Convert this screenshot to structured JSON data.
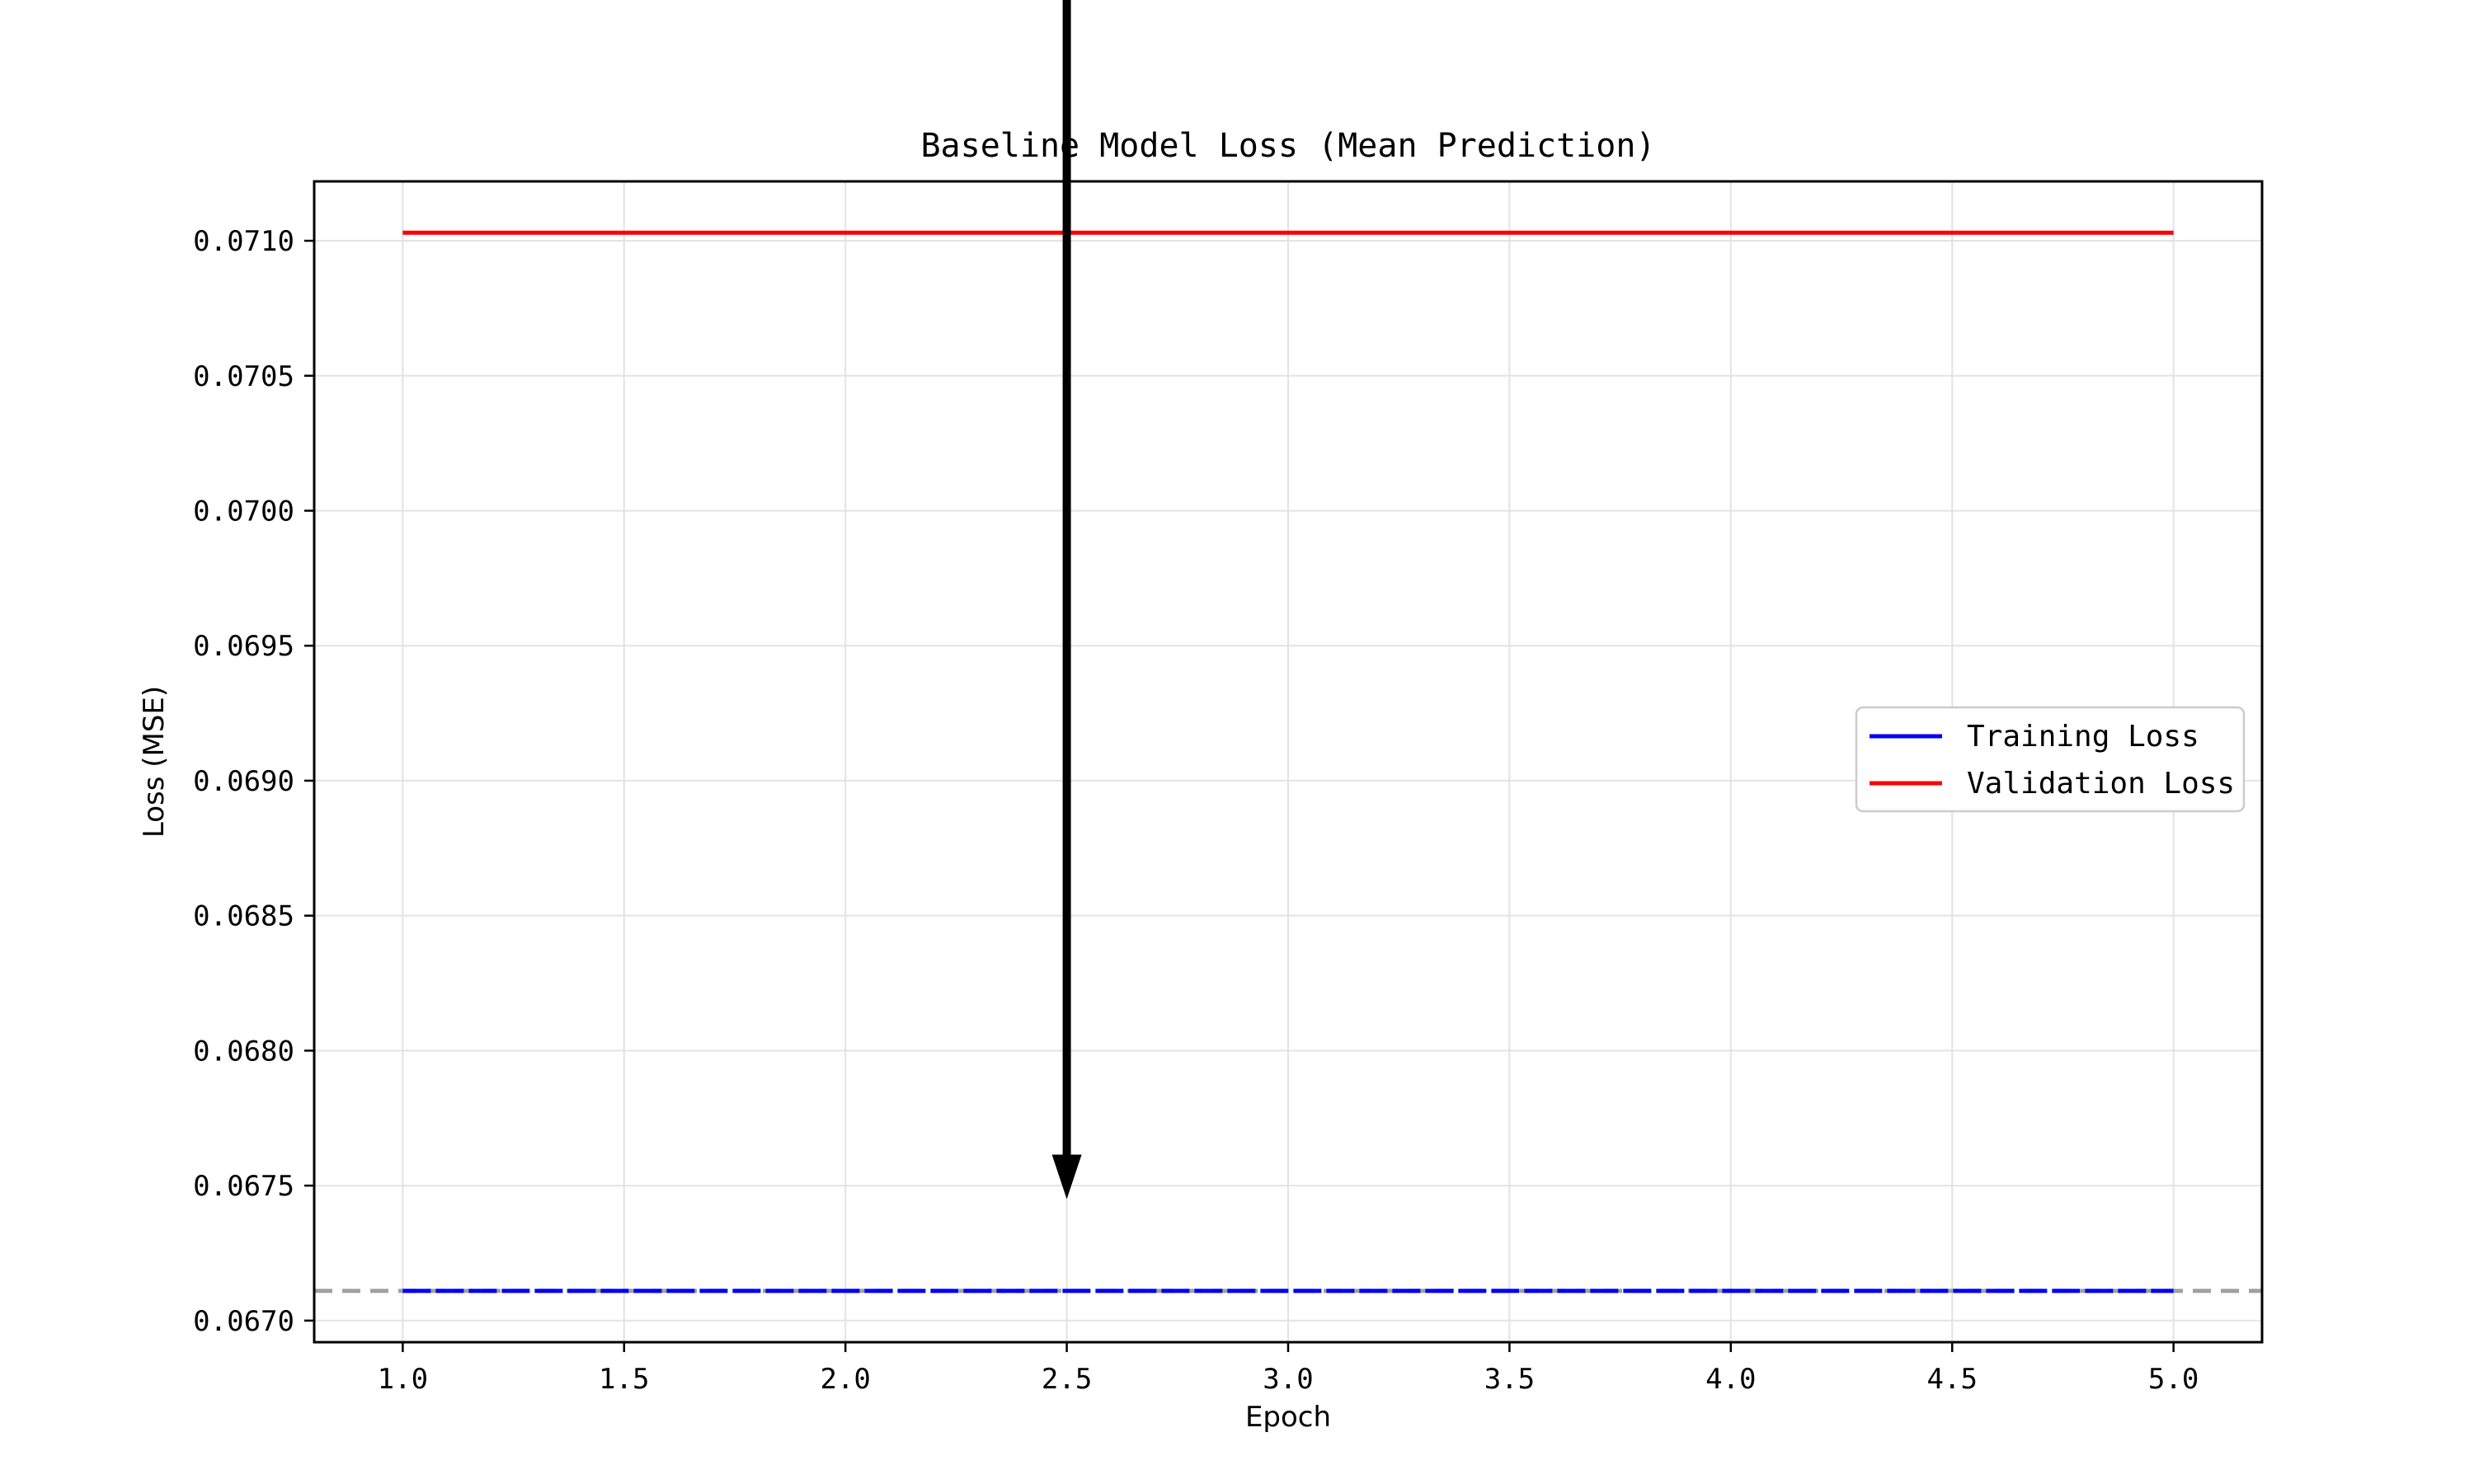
{
  "chart_data": {
    "type": "line",
    "title": "Baseline Model Loss (Mean Prediction)",
    "xlabel": "Epoch",
    "ylabel": "Loss (MSE)",
    "xlim": [
      0.8,
      5.2
    ],
    "ylim": [
      0.06692,
      0.07122
    ],
    "xticks": [
      1.0,
      1.5,
      2.0,
      2.5,
      3.0,
      3.5,
      4.0,
      4.5,
      5.0
    ],
    "xtick_labels": [
      "1.0",
      "1.5",
      "2.0",
      "2.5",
      "3.0",
      "3.5",
      "4.0",
      "4.5",
      "5.0"
    ],
    "yticks": [
      0.067,
      0.0675,
      0.068,
      0.0685,
      0.069,
      0.0695,
      0.07,
      0.0705,
      0.071
    ],
    "ytick_labels": [
      "0.0670",
      "0.0675",
      "0.0680",
      "0.0685",
      "0.0690",
      "0.0695",
      "0.0700",
      "0.0705",
      "0.0710"
    ],
    "grid": true,
    "legend_position": "center-right",
    "x": [
      1,
      2,
      3,
      4,
      5
    ],
    "series": [
      {
        "name": "Training Loss",
        "values": [
          0.06711,
          0.06711,
          0.06711,
          0.06711,
          0.06711
        ],
        "color": "#0000ff",
        "style": "solid"
      },
      {
        "name": "Validation Loss",
        "values": [
          0.07103,
          0.07103,
          0.07103,
          0.07103,
          0.07103
        ],
        "color": "#ff0000",
        "style": "solid"
      }
    ],
    "reference_line": {
      "y": 0.06711,
      "color": "#a0a0a0",
      "style": "dashed"
    },
    "annotation_arrow": {
      "x": 2.5,
      "target_y": 0.06745,
      "color": "#000000"
    }
  }
}
